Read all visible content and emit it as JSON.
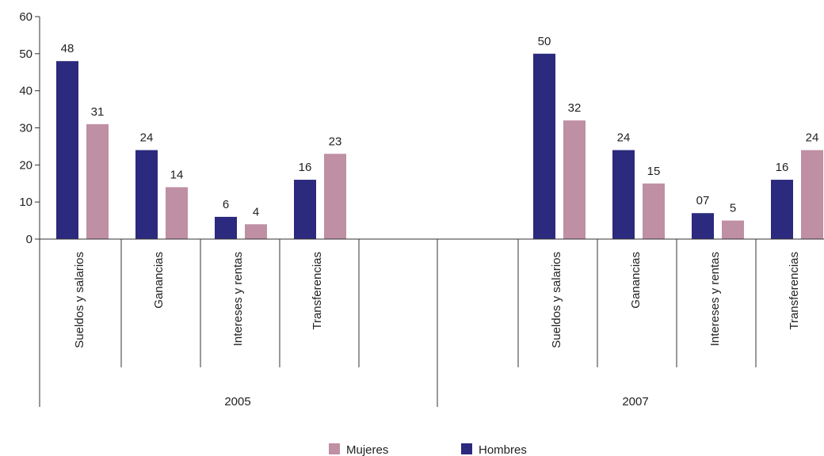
{
  "chart_data": {
    "type": "bar",
    "title": "",
    "xlabel": "",
    "ylabel": "",
    "ylim": [
      0,
      60
    ],
    "yticks": [
      0,
      10,
      20,
      30,
      40,
      50,
      60
    ],
    "grid": false,
    "legend_position": "bottom",
    "colors": {
      "Hombres": "#2b2a7e",
      "Mujeres": "#bf8fa4"
    },
    "groups": [
      {
        "label": "2005",
        "categories": [
          "Sueldos y salarios",
          "Ganancias",
          "Intereses y rentas",
          "Transferencias"
        ],
        "series": [
          {
            "name": "Hombres",
            "values": [
              48,
              24,
              6,
              16
            ],
            "labels": [
              "48",
              "24",
              "6",
              "16"
            ]
          },
          {
            "name": "Mujeres",
            "values": [
              31,
              14,
              4,
              23
            ],
            "labels": [
              "31",
              "14",
              "4",
              "23"
            ]
          }
        ]
      },
      {
        "label": "2007",
        "categories": [
          "Sueldos y salarios",
          "Ganancias",
          "Intereses y rentas",
          "Transferencias"
        ],
        "series": [
          {
            "name": "Hombres",
            "values": [
              50,
              24,
              7,
              16
            ],
            "labels": [
              "50",
              "24",
              "07",
              "16"
            ]
          },
          {
            "name": "Mujeres",
            "values": [
              32,
              15,
              5,
              24
            ],
            "labels": [
              "32",
              "15",
              "5",
              "24"
            ]
          }
        ]
      }
    ],
    "legend": [
      "Mujeres",
      "Hombres"
    ]
  }
}
